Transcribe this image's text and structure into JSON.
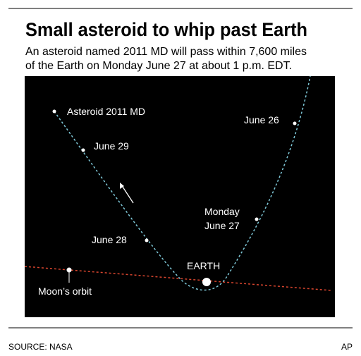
{
  "header": {
    "title": "Small asteroid to whip past Earth",
    "subtitle_lines": [
      "An asteroid named 2011 MD will pass within 7,600 miles",
      "of the Earth on Monday June 27 at about 1 p.m. EDT."
    ]
  },
  "diagram": {
    "asteroid_label": "Asteroid 2011 MD",
    "dates": {
      "june_29": "June 29",
      "june_28": "June 28",
      "june_26": "June 26",
      "june_27_lines": [
        "Monday",
        "June 27"
      ]
    },
    "earth_label": "EARTH",
    "moon_orbit_label": "Moon’s orbit"
  },
  "footer": {
    "source": "SOURCE: NASA",
    "credit": "AP"
  }
}
